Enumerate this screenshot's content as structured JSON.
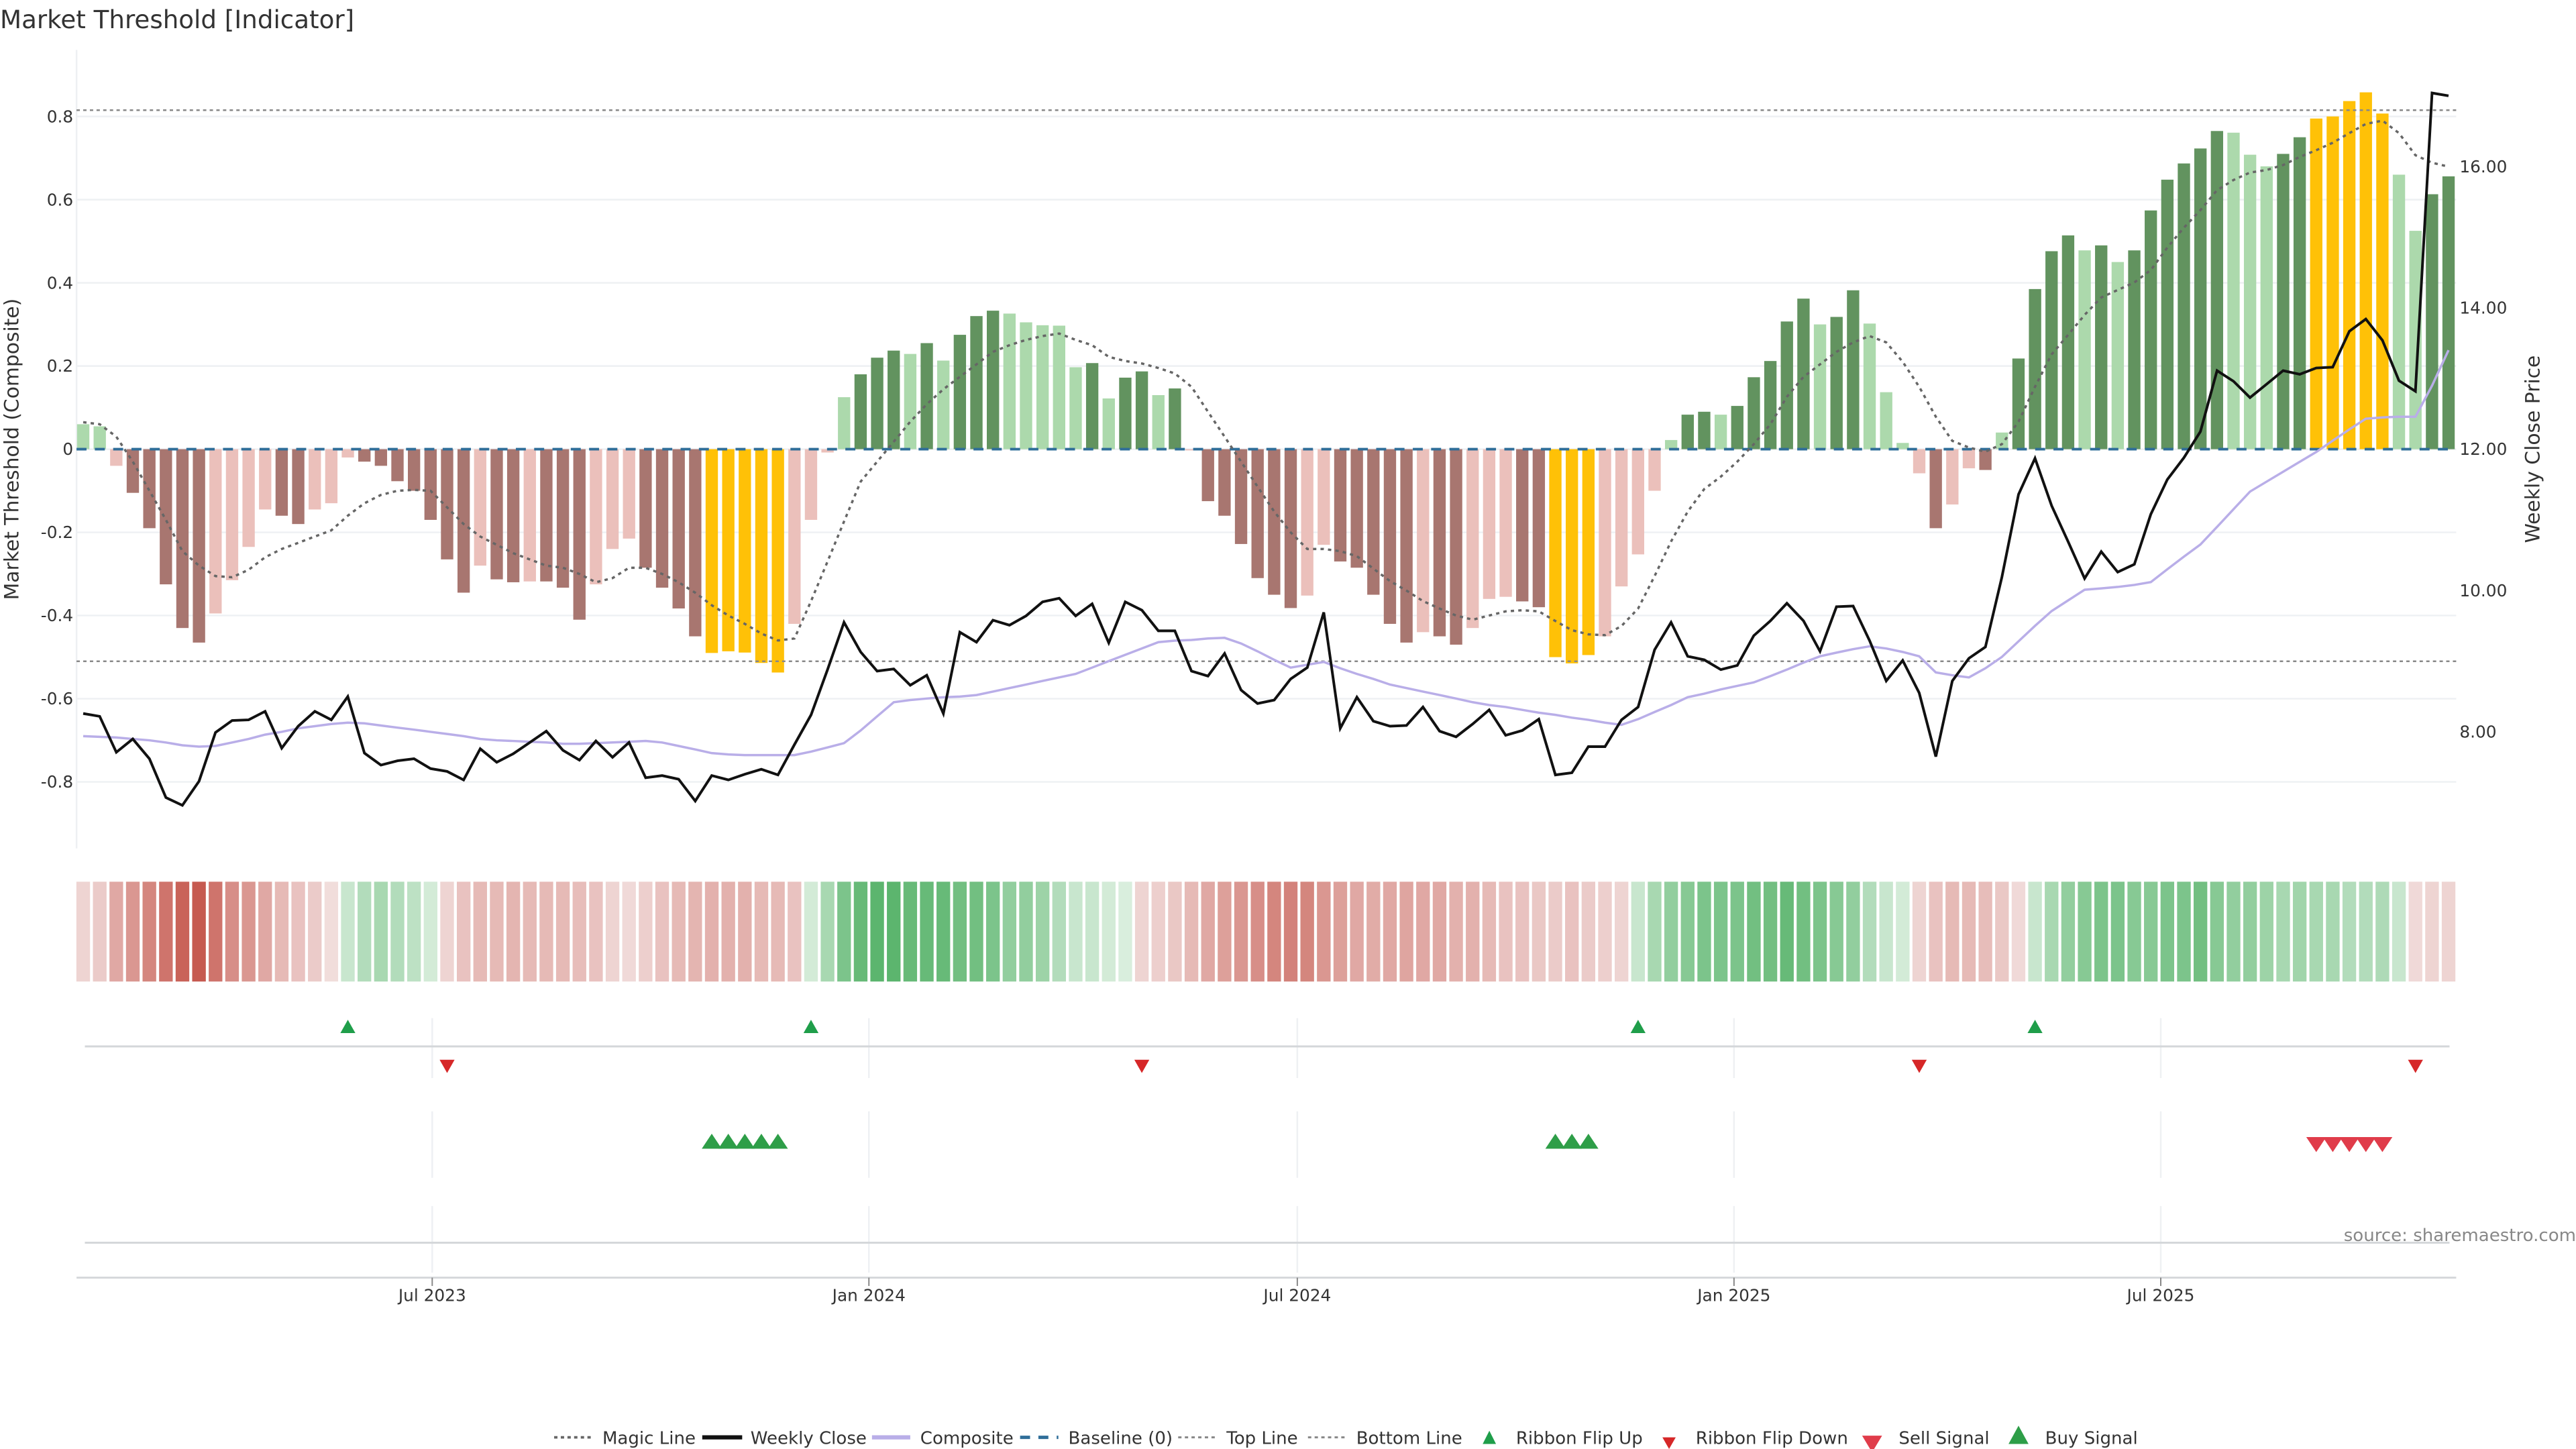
{
  "title": "Market Threshold [Indicator]",
  "source": "source: sharemaestro.com",
  "colors": {
    "dark_green": "#62935f",
    "light_green": "#acd9ac",
    "dark_red": "#a87670",
    "light_red": "#ebc0bb",
    "yellow": "#ffc107",
    "weekly_close": "#111111",
    "composite": "#b9aee8",
    "magic": "#666666",
    "baseline": "#2f6e99",
    "threshold_lines": "#888888",
    "flip_up": "#1f9e4a",
    "flip_down": "#d62728",
    "sell": "#e03c4a",
    "buy": "#2e9e48",
    "ribbon_pos": "#5cb56e",
    "ribbon_neg": "#c65a50"
  },
  "legend": [
    {
      "label": "Magic Line",
      "glyph": "dotted"
    },
    {
      "label": "Weekly Close",
      "glyph": "solid-black"
    },
    {
      "label": "Composite",
      "glyph": "solid-lavender"
    },
    {
      "label": "Baseline (0)",
      "glyph": "dashed-blue"
    },
    {
      "label": "Top Line",
      "glyph": "dotted"
    },
    {
      "label": "Bottom Line",
      "glyph": "dotted"
    },
    {
      "label": "Ribbon Flip Up",
      "glyph": "triangle-up"
    },
    {
      "label": "Ribbon Flip Down",
      "glyph": "triangle-down"
    },
    {
      "label": "Sell Signal",
      "glyph": "triangle-down"
    },
    {
      "label": "Buy Signal",
      "glyph": "triangle-up"
    }
  ],
  "chart_data": {
    "type": "bar",
    "title": "Market Threshold [Indicator]",
    "ylabel": "Market Threshold (Composite)",
    "y2label": "Weekly Close Price",
    "ylim": [
      -0.96,
      0.96
    ],
    "y2lim": [
      6.35,
      17.65
    ],
    "yticks": [
      "-0.8",
      "-0.6",
      "-0.4",
      "-0.2",
      "0",
      "0.2",
      "0.4",
      "0.6",
      "0.8"
    ],
    "y2ticks": [
      "8.00",
      "10.00",
      "12.00",
      "14.00",
      "16.00"
    ],
    "xticks": [
      {
        "label": "Jul 2023",
        "index": 22.1
      },
      {
        "label": "Jan 2024",
        "index": 48.5
      },
      {
        "label": "Jul 2024",
        "index": 74.4
      },
      {
        "label": "Jan 2025",
        "index": 100.8
      },
      {
        "label": "Jul 2025",
        "index": 126.6
      }
    ],
    "top_line": 0.815,
    "bottom_line": -0.51,
    "baseline": 0,
    "bars": [
      0.06,
      0.055,
      -0.04,
      -0.105,
      -0.19,
      -0.325,
      -0.43,
      -0.465,
      -0.395,
      -0.315,
      -0.235,
      -0.145,
      -0.16,
      -0.18,
      -0.145,
      -0.13,
      -0.02,
      -0.03,
      -0.04,
      -0.077,
      -0.1,
      -0.17,
      -0.265,
      -0.345,
      -0.28,
      -0.313,
      -0.32,
      -0.318,
      -0.318,
      -0.333,
      -0.41,
      -0.325,
      -0.24,
      -0.215,
      -0.285,
      -0.333,
      -0.383,
      -0.45,
      -0.49,
      -0.486,
      -0.489,
      -0.514,
      -0.537,
      -0.42,
      -0.17,
      -0.008,
      0.125,
      0.18,
      0.22,
      0.237,
      0.229,
      0.255,
      0.213,
      0.275,
      0.32,
      0.333,
      0.326,
      0.305,
      0.298,
      0.297,
      0.197,
      0.207,
      0.122,
      0.172,
      0.187,
      0.13,
      0.146,
      -0.003,
      -0.125,
      -0.16,
      -0.228,
      -0.31,
      -0.35,
      -0.382,
      -0.352,
      -0.23,
      -0.27,
      -0.285,
      -0.35,
      -0.42,
      -0.465,
      -0.44,
      -0.45,
      -0.47,
      -0.43,
      -0.36,
      -0.355,
      -0.366,
      -0.38,
      -0.5,
      -0.515,
      -0.495,
      -0.45,
      -0.33,
      -0.253,
      -0.1,
      0.022,
      0.083,
      0.09,
      0.083,
      0.104,
      0.173,
      0.212,
      0.307,
      0.362,
      0.3,
      0.318,
      0.382,
      0.302,
      0.137,
      0.015,
      -0.058,
      -0.19,
      -0.133,
      -0.046,
      -0.05,
      0.04,
      0.218,
      0.385,
      0.476,
      0.514,
      0.478,
      0.49,
      0.45,
      0.478,
      0.574,
      0.648,
      0.687,
      0.723,
      0.765,
      0.761,
      0.708,
      0.68,
      0.71,
      0.75,
      0.795,
      0.8,
      0.837,
      0.858,
      0.807,
      0.66,
      0.525,
      0.613,
      0.656
    ],
    "bar_classes": [
      "lg",
      "lg",
      "lr",
      "dr",
      "dr",
      "dr",
      "dr",
      "dr",
      "lr",
      "lr",
      "lr",
      "lr",
      "dr",
      "dr",
      "lr",
      "lr",
      "lr",
      "dr",
      "dr",
      "dr",
      "dr",
      "dr",
      "dr",
      "dr",
      "lr",
      "dr",
      "dr",
      "lr",
      "dr",
      "dr",
      "dr",
      "lr",
      "lr",
      "lr",
      "dr",
      "dr",
      "dr",
      "dr",
      "y",
      "y",
      "y",
      "y",
      "y",
      "lr",
      "lr",
      "lr",
      "lg",
      "dg",
      "dg",
      "dg",
      "lg",
      "dg",
      "lg",
      "dg",
      "dg",
      "dg",
      "lg",
      "lg",
      "lg",
      "lg",
      "lg",
      "dg",
      "lg",
      "dg",
      "dg",
      "lg",
      "dg",
      "lr",
      "dr",
      "dr",
      "dr",
      "dr",
      "dr",
      "dr",
      "lr",
      "lr",
      "dr",
      "dr",
      "dr",
      "dr",
      "dr",
      "lr",
      "dr",
      "dr",
      "lr",
      "lr",
      "lr",
      "dr",
      "dr",
      "y",
      "y",
      "y",
      "lr",
      "lr",
      "lr",
      "lr",
      "lg",
      "dg",
      "dg",
      "lg",
      "dg",
      "dg",
      "dg",
      "dg",
      "dg",
      "lg",
      "dg",
      "dg",
      "lg",
      "lg",
      "lg",
      "lr",
      "dr",
      "lr",
      "lr",
      "dr",
      "lg",
      "dg",
      "dg",
      "dg",
      "dg",
      "lg",
      "dg",
      "lg",
      "dg",
      "dg",
      "dg",
      "dg",
      "dg",
      "dg",
      "lg",
      "lg",
      "lg",
      "dg",
      "dg",
      "y",
      "y",
      "y",
      "y",
      "y",
      "lg",
      "lg",
      "dg",
      "dg"
    ],
    "series": [
      {
        "name": "Weekly Close",
        "axis": "right",
        "values": [
          8.26,
          8.22,
          7.71,
          7.9,
          7.62,
          7.07,
          6.96,
          7.3,
          7.99,
          8.16,
          8.17,
          8.29,
          7.77,
          8.08,
          8.29,
          8.17,
          8.5,
          7.7,
          7.53,
          7.59,
          7.62,
          7.48,
          7.44,
          7.32,
          7.76,
          7.57,
          7.69,
          7.85,
          8.01,
          7.74,
          7.6,
          7.87,
          7.64,
          7.85,
          7.35,
          7.38,
          7.33,
          7.02,
          7.38,
          7.32,
          7.4,
          7.47,
          7.39,
          7.82,
          8.24,
          8.88,
          9.55,
          9.13,
          8.86,
          8.89,
          8.66,
          8.8,
          8.26,
          9.41,
          9.27,
          9.58,
          9.51,
          9.64,
          9.84,
          9.89,
          9.64,
          9.81,
          9.26,
          9.84,
          9.72,
          9.43,
          9.43,
          8.86,
          8.79,
          9.11,
          8.59,
          8.4,
          8.45,
          8.75,
          8.91,
          9.69,
          8.05,
          8.49,
          8.15,
          8.08,
          8.09,
          8.35,
          8.01,
          7.93,
          8.11,
          8.31,
          7.95,
          8.02,
          8.18,
          7.39,
          7.42,
          7.79,
          7.79,
          8.17,
          8.35,
          9.16,
          9.55,
          9.07,
          9.02,
          8.88,
          8.94,
          9.36,
          9.57,
          9.82,
          9.57,
          9.14,
          9.77,
          9.78,
          9.29,
          8.72,
          9.01,
          8.55,
          7.65,
          8.72,
          9.04,
          9.2,
          10.19,
          11.36,
          11.87,
          11.2,
          10.69,
          10.17,
          10.55,
          10.26,
          10.37,
          11.08,
          11.57,
          11.88,
          12.25,
          13.11,
          12.96,
          12.73,
          12.92,
          13.11,
          13.06,
          13.15,
          13.16,
          13.67,
          13.84,
          13.54,
          12.97,
          12.82,
          17.04,
          17.0
        ]
      },
      {
        "name": "Composite",
        "axis": "right",
        "values": [
          7.94,
          7.93,
          7.92,
          7.9,
          7.88,
          7.85,
          7.81,
          7.79,
          7.8,
          7.85,
          7.9,
          7.96,
          8.0,
          8.05,
          8.08,
          8.11,
          8.13,
          8.12,
          8.09,
          8.06,
          8.03,
          8.0,
          7.97,
          7.94,
          7.9,
          7.88,
          7.87,
          7.86,
          7.85,
          7.83,
          7.83,
          7.84,
          7.85,
          7.86,
          7.87,
          7.85,
          7.8,
          7.75,
          7.7,
          7.68,
          7.67,
          7.67,
          7.67,
          7.67,
          7.72,
          7.78,
          7.84,
          8.02,
          8.22,
          8.42,
          8.45,
          8.47,
          8.49,
          8.5,
          8.52,
          8.57,
          8.62,
          8.67,
          8.72,
          8.77,
          8.82,
          8.91,
          9.0,
          9.09,
          9.18,
          9.27,
          9.29,
          9.3,
          9.32,
          9.33,
          9.25,
          9.14,
          9.02,
          8.91,
          8.95,
          8.99,
          8.9,
          8.82,
          8.75,
          8.67,
          8.62,
          8.57,
          8.52,
          8.47,
          8.42,
          8.38,
          8.35,
          8.31,
          8.27,
          8.24,
          8.2,
          8.17,
          8.13,
          8.1,
          8.18,
          8.28,
          8.38,
          8.49,
          8.54,
          8.6,
          8.65,
          8.7,
          8.79,
          8.88,
          8.98,
          9.07,
          9.12,
          9.17,
          9.21,
          9.18,
          9.13,
          9.07,
          8.84,
          8.8,
          8.77,
          8.9,
          9.06,
          9.28,
          9.5,
          9.71,
          9.86,
          10.01,
          10.03,
          10.05,
          10.08,
          10.12,
          10.3,
          10.48,
          10.65,
          10.9,
          11.15,
          11.4,
          11.54,
          11.68,
          11.82,
          11.96,
          12.12,
          12.28,
          12.43,
          12.45,
          12.46,
          12.46,
          12.9,
          13.4
        ]
      },
      {
        "name": "Magic Line",
        "axis": "left",
        "values": [
          0.065,
          0.06,
          0.03,
          -0.03,
          -0.1,
          -0.17,
          -0.245,
          -0.28,
          -0.305,
          -0.308,
          -0.29,
          -0.26,
          -0.24,
          -0.225,
          -0.21,
          -0.195,
          -0.16,
          -0.13,
          -0.11,
          -0.1,
          -0.098,
          -0.1,
          -0.14,
          -0.18,
          -0.21,
          -0.23,
          -0.25,
          -0.265,
          -0.28,
          -0.285,
          -0.3,
          -0.32,
          -0.31,
          -0.285,
          -0.285,
          -0.3,
          -0.32,
          -0.345,
          -0.375,
          -0.4,
          -0.42,
          -0.443,
          -0.46,
          -0.455,
          -0.365,
          -0.27,
          -0.174,
          -0.078,
          -0.03,
          0.018,
          0.066,
          0.108,
          0.144,
          0.174,
          0.204,
          0.234,
          0.25,
          0.263,
          0.272,
          0.278,
          0.263,
          0.25,
          0.222,
          0.212,
          0.206,
          0.195,
          0.182,
          0.15,
          0.09,
          0.03,
          -0.03,
          -0.09,
          -0.15,
          -0.2,
          -0.24,
          -0.24,
          -0.245,
          -0.257,
          -0.287,
          -0.317,
          -0.34,
          -0.365,
          -0.383,
          -0.4,
          -0.41,
          -0.4,
          -0.39,
          -0.387,
          -0.39,
          -0.413,
          -0.435,
          -0.445,
          -0.447,
          -0.425,
          -0.383,
          -0.305,
          -0.222,
          -0.15,
          -0.096,
          -0.066,
          -0.03,
          0.012,
          0.06,
          0.126,
          0.174,
          0.204,
          0.234,
          0.257,
          0.272,
          0.257,
          0.21,
          0.15,
          0.078,
          0.02,
          0.004,
          -0.006,
          0.012,
          0.066,
          0.15,
          0.228,
          0.275,
          0.323,
          0.365,
          0.383,
          0.401,
          0.431,
          0.485,
          0.533,
          0.575,
          0.623,
          0.647,
          0.665,
          0.671,
          0.683,
          0.703,
          0.719,
          0.737,
          0.76,
          0.782,
          0.79,
          0.76,
          0.707,
          0.689,
          0.679
        ]
      }
    ],
    "ribbon": [
      -0.15,
      -0.2,
      -0.4,
      -0.5,
      -0.6,
      -0.7,
      -0.8,
      -0.85,
      -0.7,
      -0.55,
      -0.5,
      -0.4,
      -0.3,
      -0.25,
      -0.2,
      -0.1,
      0.2,
      0.3,
      0.35,
      0.3,
      0.25,
      0.15,
      -0.15,
      -0.25,
      -0.3,
      -0.3,
      -0.33,
      -0.3,
      -0.3,
      -0.3,
      -0.28,
      -0.25,
      -0.15,
      -0.12,
      -0.18,
      -0.25,
      -0.3,
      -0.33,
      -0.35,
      -0.35,
      -0.35,
      -0.3,
      -0.3,
      -0.25,
      0.15,
      0.35,
      0.55,
      0.65,
      0.7,
      0.7,
      0.65,
      0.65,
      0.65,
      0.6,
      0.6,
      0.55,
      0.45,
      0.45,
      0.4,
      0.3,
      0.2,
      0.2,
      0.15,
      0.12,
      -0.15,
      -0.18,
      -0.22,
      -0.3,
      -0.4,
      -0.45,
      -0.5,
      -0.55,
      -0.6,
      -0.62,
      -0.6,
      -0.5,
      -0.45,
      -0.4,
      -0.38,
      -0.4,
      -0.42,
      -0.4,
      -0.4,
      -0.35,
      -0.35,
      -0.3,
      -0.25,
      -0.25,
      -0.22,
      -0.2,
      -0.25,
      -0.2,
      -0.18,
      -0.15,
      0.2,
      0.35,
      0.45,
      0.5,
      0.55,
      0.55,
      0.55,
      0.6,
      0.6,
      0.65,
      0.6,
      0.55,
      0.5,
      0.45,
      0.3,
      0.2,
      0.15,
      -0.15,
      -0.25,
      -0.3,
      -0.3,
      -0.28,
      -0.22,
      -0.12,
      0.2,
      0.35,
      0.45,
      0.5,
      0.55,
      0.55,
      0.5,
      0.5,
      0.55,
      0.55,
      0.6,
      0.5,
      0.45,
      0.45,
      0.4,
      0.35,
      0.38,
      0.35,
      0.35,
      0.3,
      0.3,
      0.32,
      0.2,
      -0.12,
      -0.15,
      -0.15
    ],
    "signals": {
      "ribbon_flip_up": [
        17,
        45,
        95,
        119
      ],
      "ribbon_flip_down": [
        23,
        65,
        112,
        142
      ],
      "buy": [
        39,
        40,
        41,
        42,
        43,
        90,
        91,
        92
      ],
      "sell": [
        136,
        137,
        138,
        139,
        140
      ]
    },
    "legend_position": "bottom-center"
  }
}
